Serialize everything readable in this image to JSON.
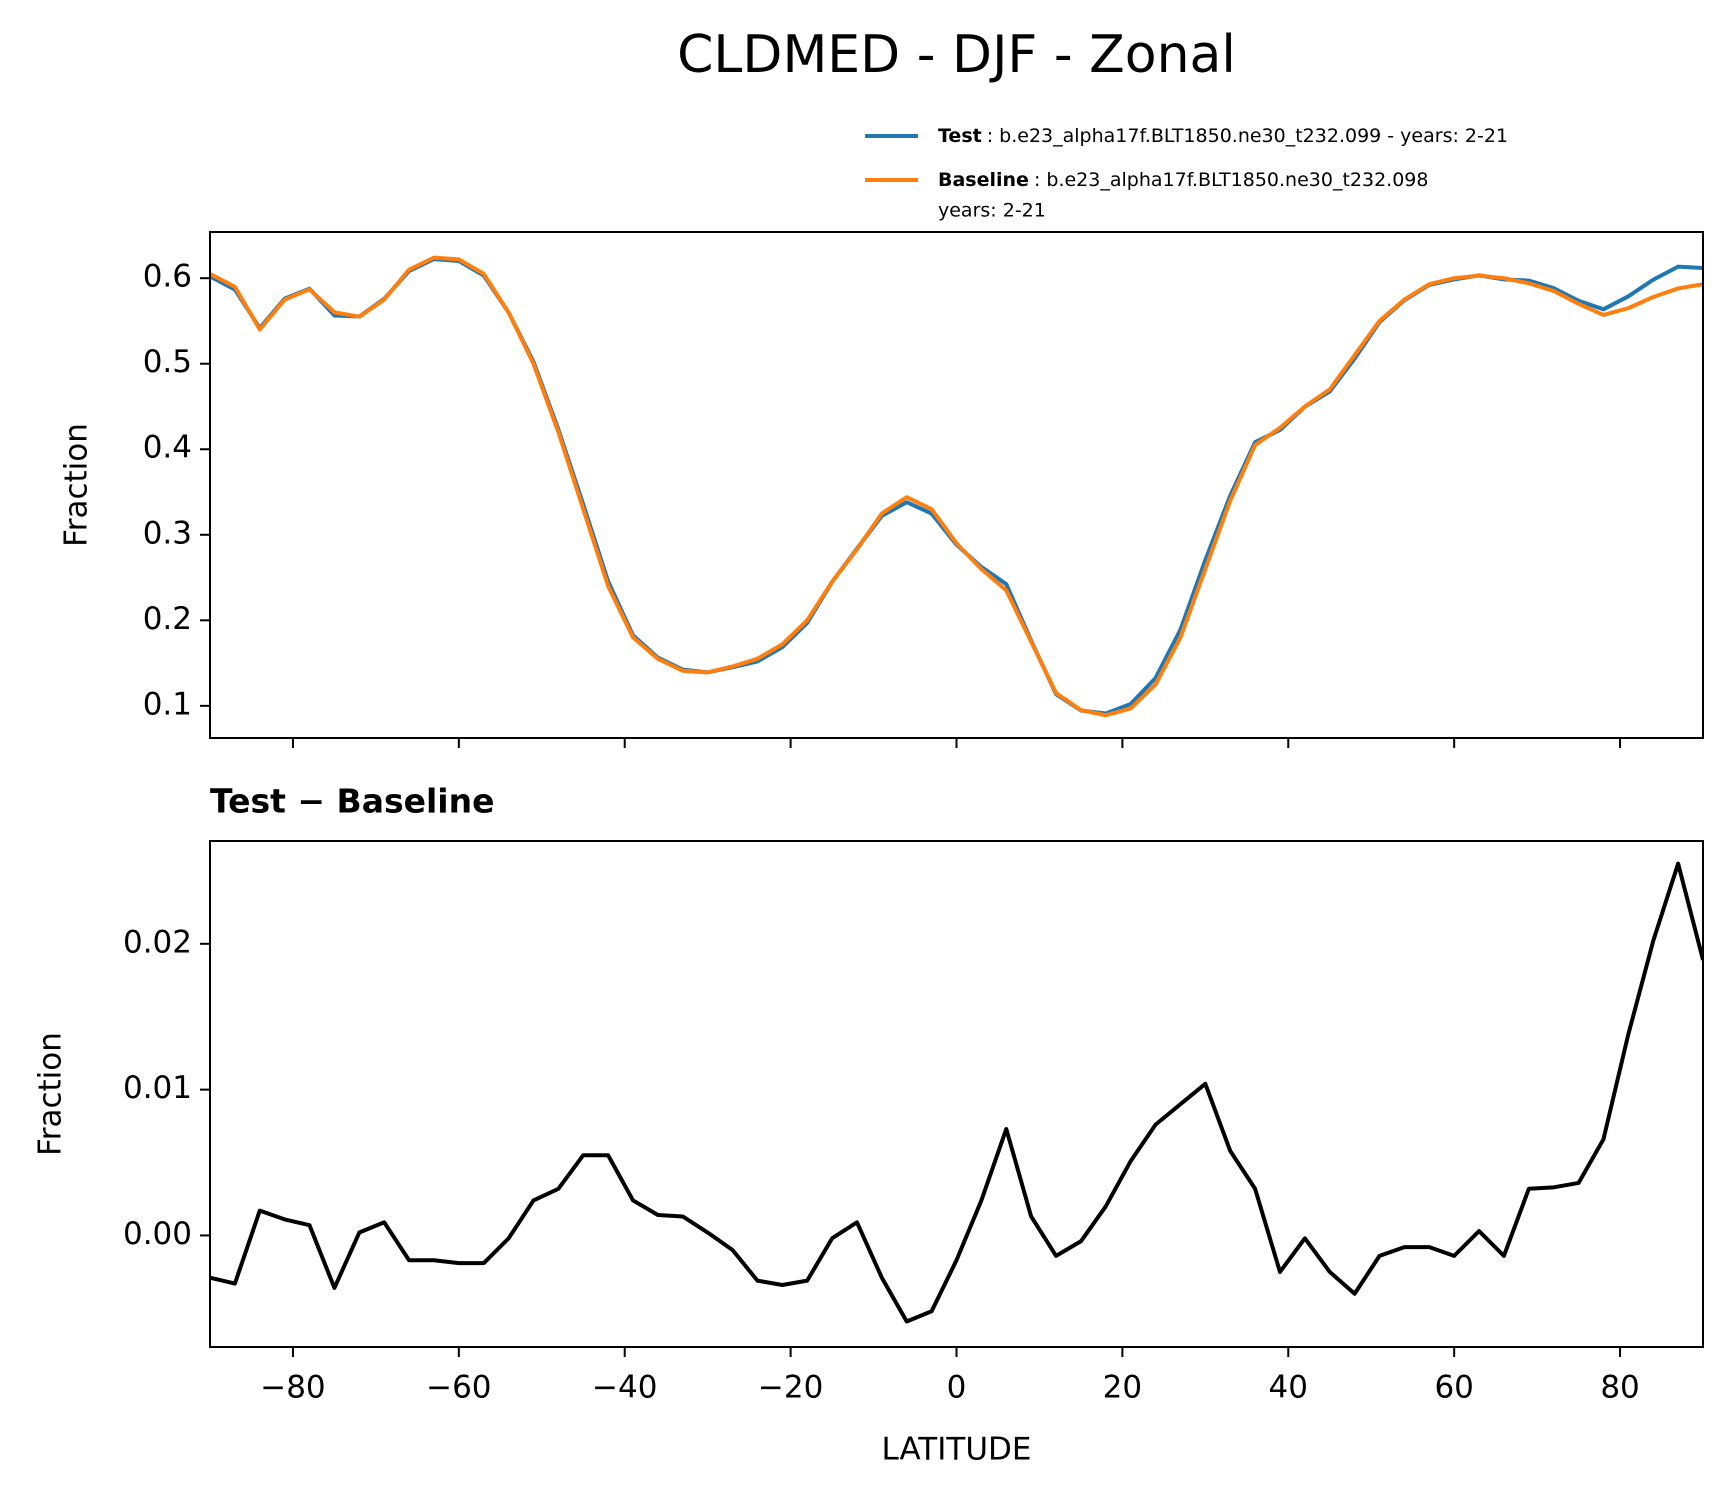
{
  "chart_data": [
    {
      "type": "line",
      "title": "CLDMED - DJF - Zonal",
      "ylabel": "Fraction",
      "x": [
        -90,
        -87,
        -84,
        -81,
        -78,
        -75,
        -72,
        -69,
        -66,
        -63,
        -60,
        -57,
        -54,
        -51,
        -48,
        -45,
        -42,
        -39,
        -36,
        -33,
        -30,
        -27,
        -24,
        -21,
        -18,
        -15,
        -12,
        -9,
        -6,
        -3,
        0,
        3,
        6,
        9,
        12,
        15,
        18,
        21,
        24,
        27,
        30,
        33,
        36,
        39,
        42,
        45,
        48,
        51,
        54,
        57,
        60,
        63,
        66,
        69,
        72,
        75,
        78,
        81,
        84,
        87,
        90
      ],
      "series": [
        {
          "name": "Test",
          "description": [
            ": b.e23_alpha17f.BLT1850.ne30_t232.099 - years: 2-21"
          ],
          "color": "#1f77b4",
          "values": [
            0.6021,
            0.5867,
            0.5417,
            0.5761,
            0.5877,
            0.5564,
            0.5552,
            0.5759,
            0.6083,
            0.6223,
            0.6201,
            0.6031,
            0.5598,
            0.5024,
            0.4232,
            0.3355,
            0.2455,
            0.1824,
            0.1564,
            0.1423,
            0.1392,
            0.145,
            0.1519,
            0.1686,
            0.1969,
            0.2448,
            0.2839,
            0.3221,
            0.3381,
            0.3248,
            0.2883,
            0.2624,
            0.2423,
            0.1763,
            0.1136,
            0.0946,
            0.091,
            0.1021,
            0.1326,
            0.189,
            0.2704,
            0.3458,
            0.4082,
            0.4225,
            0.4498,
            0.4675,
            0.506,
            0.5486,
            0.5742,
            0.5922,
            0.5986,
            0.6033,
            0.5986,
            0.5972,
            0.5883,
            0.5736,
            0.5636,
            0.5788,
            0.5982,
            0.6135,
            0.6119
          ]
        },
        {
          "name": "Baseline",
          "description": [
            ": b.e23_alpha17f.BLT1850.ne30_t232.098",
            "years: 2-21"
          ],
          "color": "#ff7f0e",
          "values": [
            0.605,
            0.59,
            0.54,
            0.575,
            0.587,
            0.56,
            0.555,
            0.575,
            0.61,
            0.624,
            0.622,
            0.605,
            0.56,
            0.5,
            0.42,
            0.33,
            0.24,
            0.18,
            0.155,
            0.141,
            0.139,
            0.146,
            0.155,
            0.172,
            0.2,
            0.245,
            0.283,
            0.325,
            0.344,
            0.33,
            0.29,
            0.26,
            0.235,
            0.175,
            0.115,
            0.095,
            0.089,
            0.097,
            0.125,
            0.18,
            0.26,
            0.34,
            0.405,
            0.425,
            0.45,
            0.47,
            0.51,
            0.55,
            0.575,
            0.593,
            0.6,
            0.603,
            0.6,
            0.594,
            0.585,
            0.57,
            0.557,
            0.565,
            0.578,
            0.588,
            0.593
          ]
        }
      ],
      "xlim": [
        -90,
        90
      ],
      "xticks": [
        -80,
        -60,
        -40,
        -20,
        0,
        20,
        40,
        60,
        80
      ],
      "xticklabels": false,
      "ylim": [
        0.0624,
        0.654
      ],
      "yticks": [
        0.1,
        0.2,
        0.3,
        0.4,
        0.5,
        0.6
      ]
    },
    {
      "type": "line",
      "title": "Test − Baseline",
      "xlabel": "LATITUDE",
      "ylabel": "Fraction",
      "x": [
        -90,
        -87,
        -84,
        -81,
        -78,
        -75,
        -72,
        -69,
        -66,
        -63,
        -60,
        -57,
        -54,
        -51,
        -48,
        -45,
        -42,
        -39,
        -36,
        -33,
        -30,
        -27,
        -24,
        -21,
        -18,
        -15,
        -12,
        -9,
        -6,
        -3,
        0,
        3,
        6,
        9,
        12,
        15,
        18,
        21,
        24,
        27,
        30,
        33,
        36,
        39,
        42,
        45,
        48,
        51,
        54,
        57,
        60,
        63,
        66,
        69,
        72,
        75,
        78,
        81,
        84,
        87,
        90
      ],
      "series": [
        {
          "color": "#000000",
          "values": [
            -0.0029,
            -0.0033,
            0.0017,
            0.0011,
            0.0007,
            -0.0036,
            0.0002,
            0.0009,
            -0.0017,
            -0.0017,
            -0.0019,
            -0.0019,
            -0.0002,
            0.0024,
            0.0032,
            0.0055,
            0.0055,
            0.0024,
            0.0014,
            0.0013,
            0.0002,
            -0.001,
            -0.0031,
            -0.0034,
            -0.0031,
            -0.0002,
            0.0009,
            -0.0029,
            -0.0059,
            -0.0052,
            -0.0017,
            0.0024,
            0.0073,
            0.0013,
            -0.0014,
            -0.0004,
            0.002,
            0.0051,
            0.0076,
            0.009,
            0.0104,
            0.0058,
            0.0032,
            -0.0025,
            -0.0002,
            -0.0025,
            -0.004,
            -0.0014,
            -0.0008,
            -0.0008,
            -0.0014,
            0.0003,
            -0.0014,
            0.0032,
            0.0033,
            0.0036,
            0.0066,
            0.0138,
            0.0202,
            0.0255,
            0.0189
          ]
        }
      ],
      "xlim": [
        -90,
        90
      ],
      "xticks": [
        -80,
        -60,
        -40,
        -20,
        0,
        20,
        40,
        60,
        80
      ],
      "xticklabels": true,
      "ylim": [
        -0.00765,
        0.02705
      ],
      "yticks": [
        {
          "value": 0,
          "label": "0.00"
        },
        {
          "value": 0.01,
          "label": "0.01"
        },
        {
          "value": 0.02,
          "label": "0.02"
        }
      ]
    }
  ]
}
